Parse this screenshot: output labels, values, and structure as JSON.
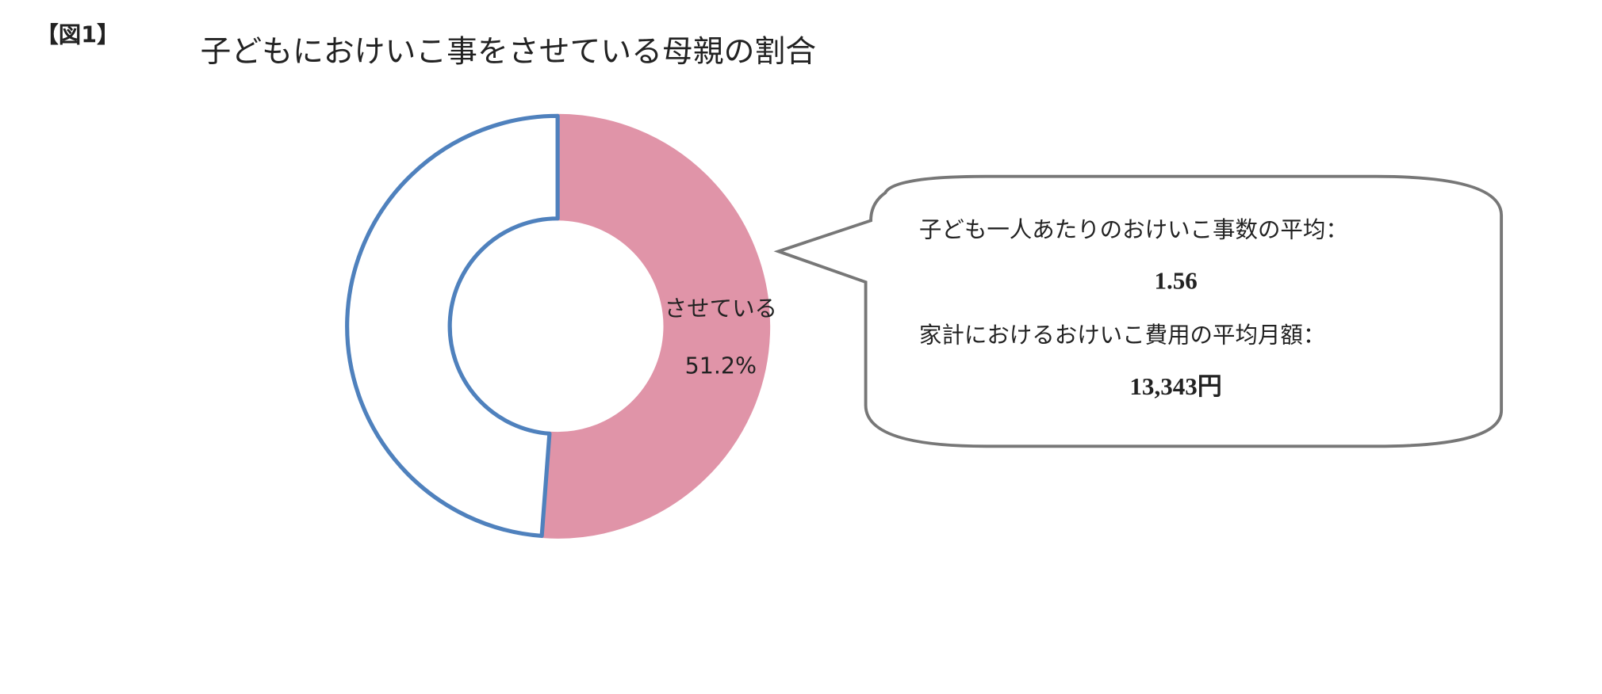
{
  "figure_label": "【図1】",
  "chart_data": {
    "type": "donut",
    "title": "子どもにおけいこ事をさせている母親の割合",
    "categories": [
      "させている",
      null
    ],
    "values": [
      51.2,
      48.8
    ],
    "value_labels": [
      "51.2%",
      null
    ],
    "colors": [
      "#e094a8",
      "#ffffff"
    ],
    "outline_colors": [
      "#e094a8",
      "#4f81bd"
    ]
  },
  "callout": {
    "lines": [
      {
        "text": "子ども一人あたりのおけいこ事数の平均：",
        "bold": false
      },
      {
        "text": "1.56",
        "bold": true
      },
      {
        "text": "家計におけるおけいこ費用の平均月額：",
        "bold": false
      },
      {
        "text": "13,343円",
        "bold": true
      }
    ]
  }
}
